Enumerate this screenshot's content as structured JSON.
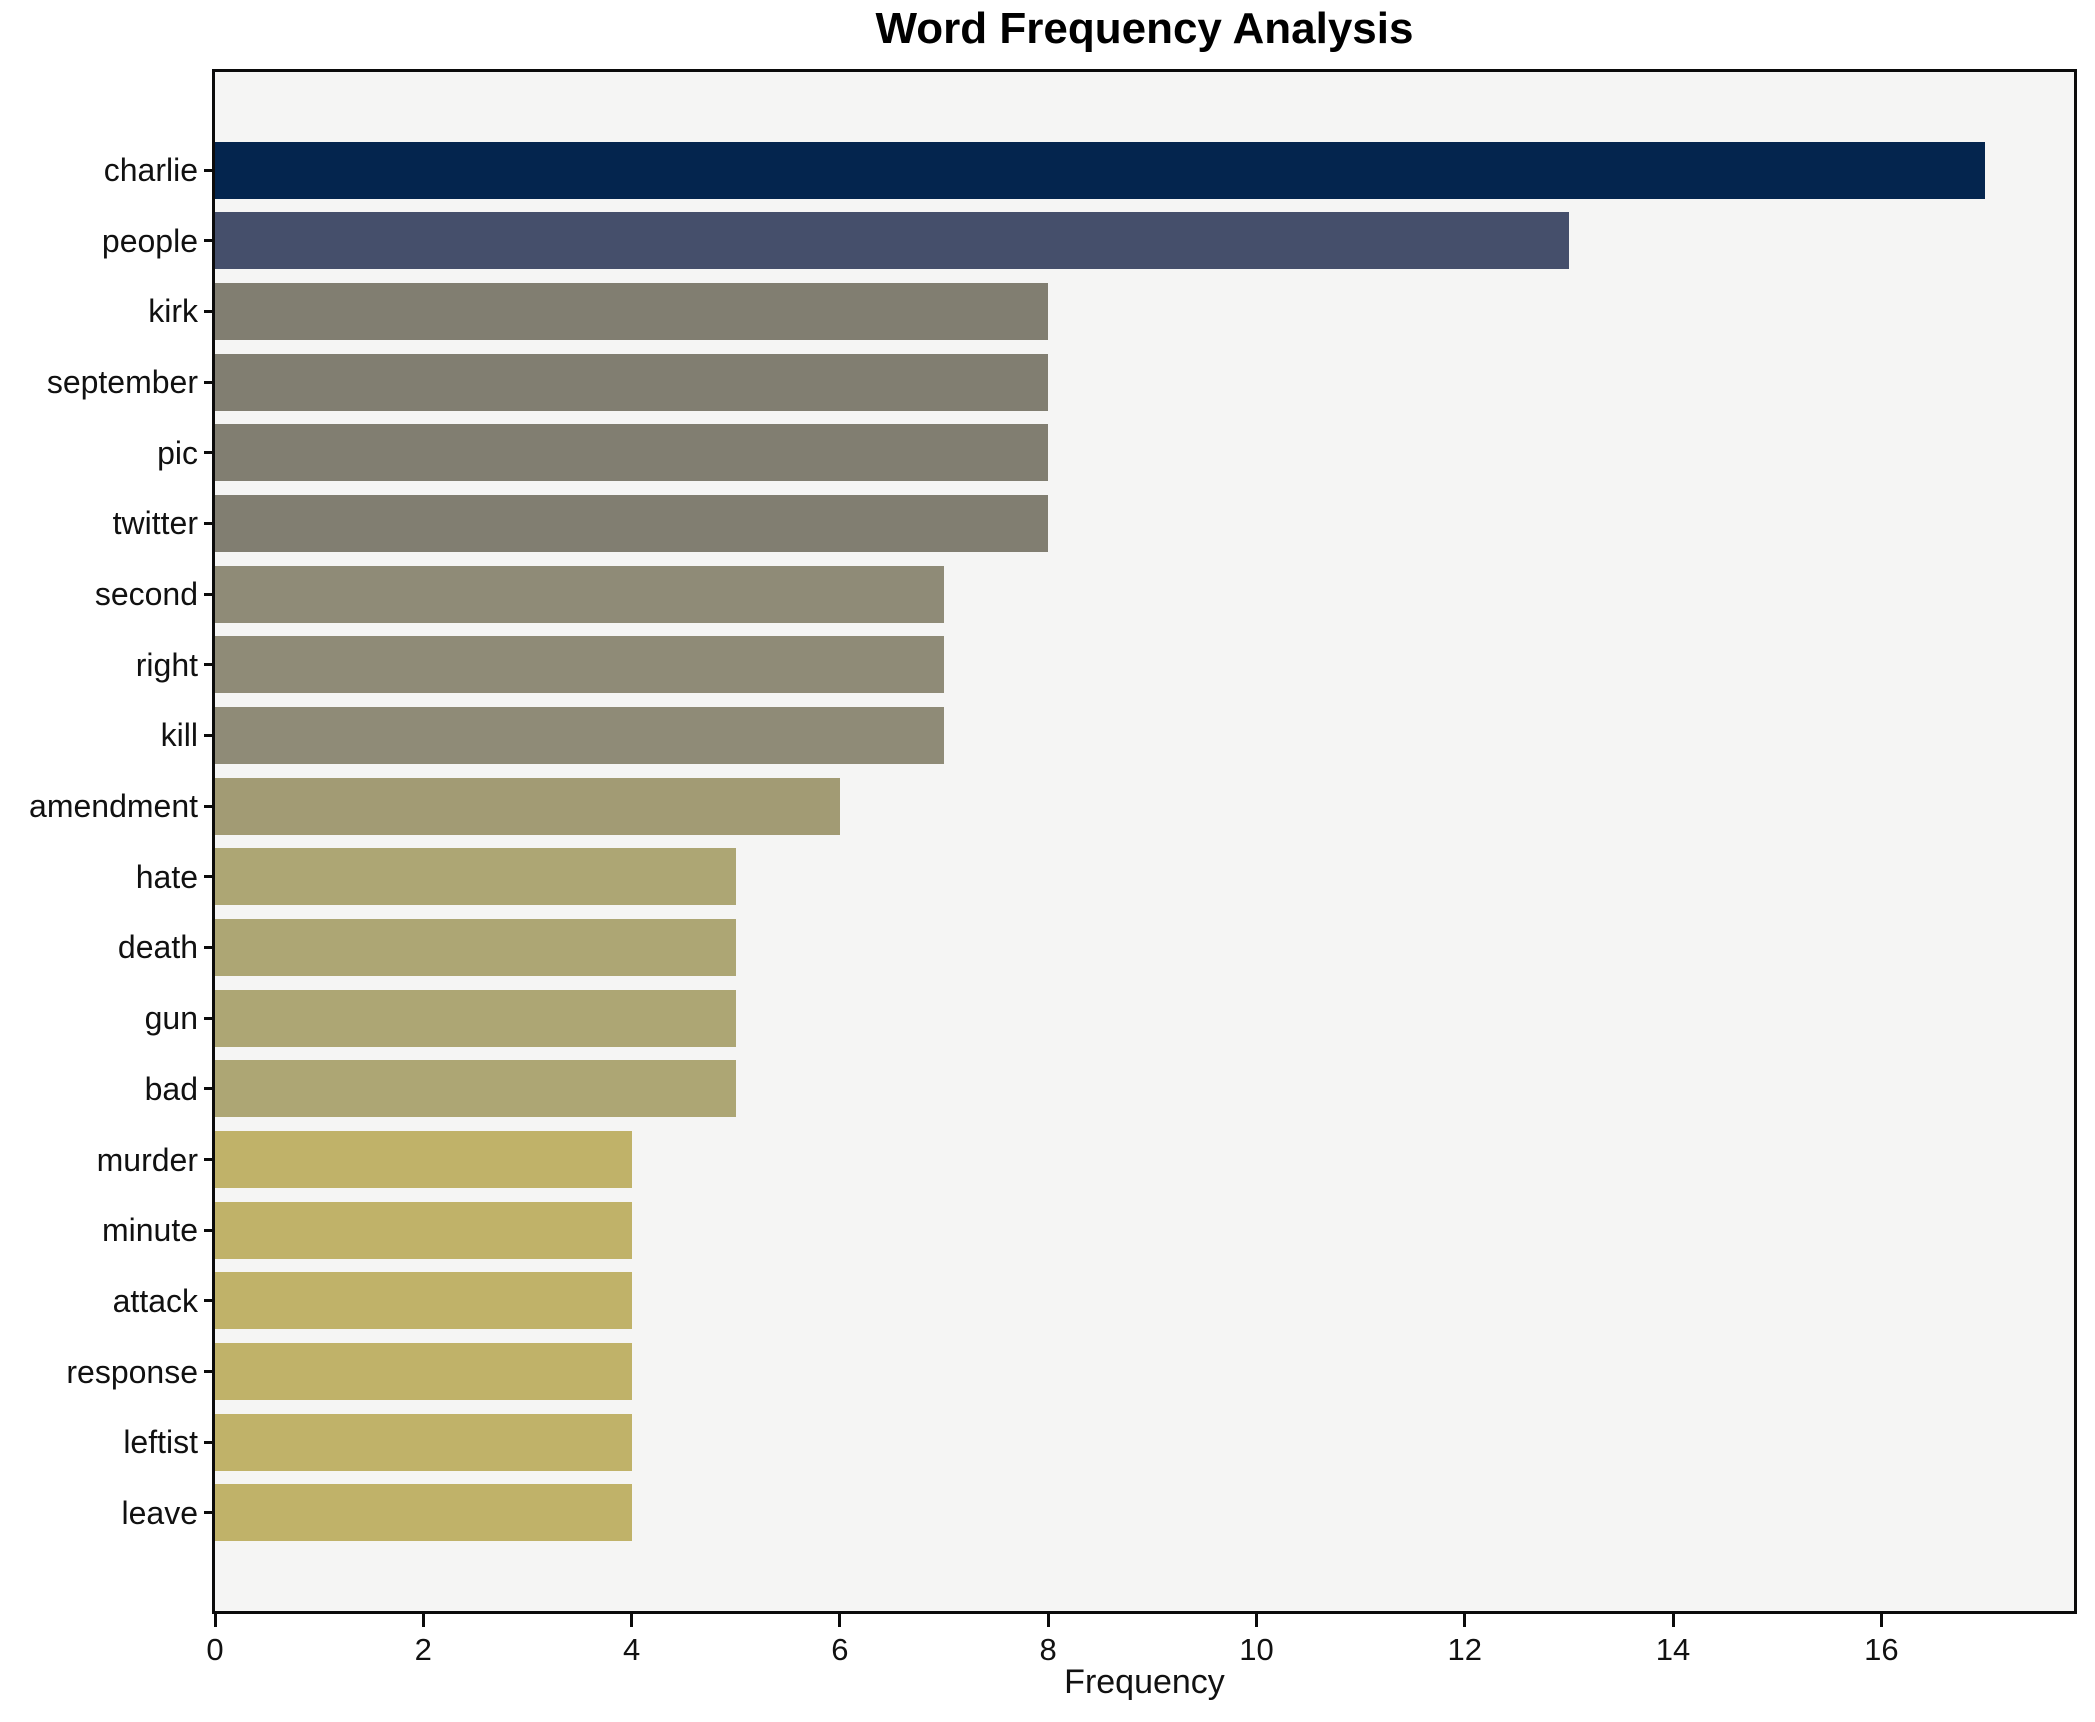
{
  "chart_data": {
    "type": "bar",
    "orientation": "horizontal",
    "title": "Word Frequency Analysis",
    "xlabel": "Frequency",
    "ylabel": "",
    "xlim": [
      0,
      17.85
    ],
    "xticks": [
      0,
      2,
      4,
      6,
      8,
      10,
      12,
      14,
      16
    ],
    "grid": false,
    "legend_position": "none",
    "plot_background": "#f5f5f4",
    "figure_background": "#ffffff",
    "spine_color": "#0b0b0b",
    "categories": [
      "charlie",
      "people",
      "kirk",
      "september",
      "pic",
      "twitter",
      "second",
      "right",
      "kill",
      "amendment",
      "hate",
      "death",
      "gun",
      "bad",
      "murder",
      "minute",
      "attack",
      "response",
      "leftist",
      "leave"
    ],
    "values": [
      17,
      13,
      8,
      8,
      8,
      8,
      7,
      7,
      7,
      6,
      5,
      5,
      5,
      5,
      4,
      4,
      4,
      4,
      4,
      4
    ],
    "bar_colors": [
      "#04254e",
      "#454f6b",
      "#817e71",
      "#817e71",
      "#817e71",
      "#817e71",
      "#8f8b77",
      "#8f8b77",
      "#8f8b77",
      "#a29b74",
      "#ada674",
      "#ada674",
      "#ada674",
      "#ada674",
      "#c0b269",
      "#c0b269",
      "#c0b269",
      "#c0b269",
      "#c0b269",
      "#c0b269"
    ]
  }
}
